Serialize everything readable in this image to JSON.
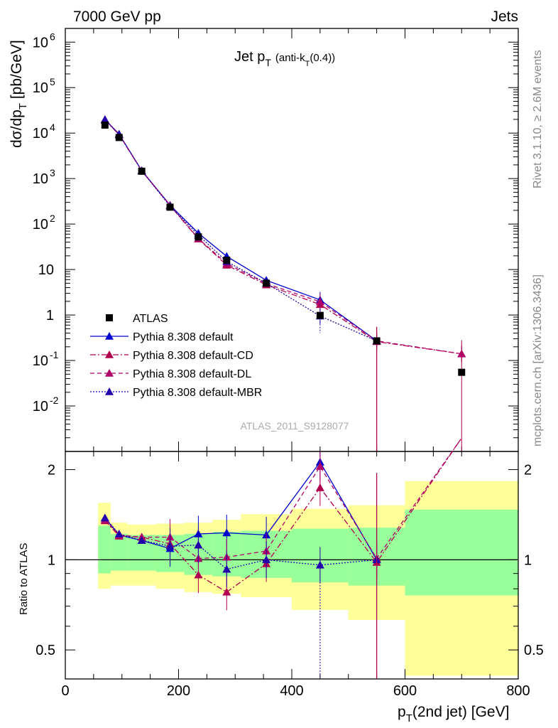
{
  "header": {
    "energy": "7000 GeV pp",
    "category": "Jets"
  },
  "plot_title": {
    "main": "Jet p",
    "main_sub": "T",
    "paren": "(anti-k",
    "paren_sub": "T",
    "paren_end": "(0.4))"
  },
  "side": {
    "rivet": "Rivet 3.1.10, ≥ 2.6M events",
    "mcplots": "mcplots.cern.ch [arXiv:1306.3436]"
  },
  "analysis_id": "ATLAS_2011_S9128077",
  "colors": {
    "atlas": "#000000",
    "default": "#0000cc",
    "cd": "#b0004f",
    "dl": "#b0006a",
    "mbr": "#2200aa",
    "band_yellow": "#ffff99",
    "band_green": "#99ff99"
  },
  "chart_data": [
    {
      "type": "scatter",
      "title": "Jet pT (anti-kT(0.4))",
      "xlabel": "pT(2nd jet) [GeV]",
      "ylabel": "dσ/dpT [pb/GeV]",
      "xlim": [
        0,
        800
      ],
      "ylim": [
        0.001,
        2000000
      ],
      "yscale": "log",
      "y_tick_labels": [
        "10^-2",
        "10^-1",
        "1",
        "10",
        "10^2",
        "10^3",
        "10^4",
        "10^5",
        "10^6"
      ],
      "legend": {
        "position": "lower-left",
        "entries": [
          "ATLAS",
          "Pythia 8.308 default",
          "Pythia 8.308 default-CD",
          "Pythia 8.308 default-DL",
          "Pythia 8.308 default-MBR"
        ]
      },
      "series": [
        {
          "name": "ATLAS",
          "style": "marker-square",
          "points": [
            [
              70,
              15000
            ],
            [
              95,
              8000
            ],
            [
              135,
              1450
            ],
            [
              185,
              235
            ],
            [
              235,
              52
            ],
            [
              285,
              16
            ],
            [
              355,
              5.0
            ],
            [
              450,
              0.98
            ],
            [
              550,
              0.27
            ],
            [
              700,
              0.055
            ]
          ]
        },
        {
          "name": "Pythia 8.308 default",
          "style": "solid-line-triangle",
          "points": [
            [
              70,
              20000
            ],
            [
              95,
              9500
            ],
            [
              135,
              1500
            ],
            [
              185,
              260
            ],
            [
              235,
              63
            ],
            [
              285,
              19.5
            ],
            [
              355,
              5.8
            ],
            [
              450,
              2.15
            ],
            [
              550,
              0.27
            ]
          ]
        },
        {
          "name": "Pythia 8.308 default-CD",
          "style": "dashdot-line-triangle",
          "points": [
            [
              70,
              19500
            ],
            [
              95,
              9200
            ],
            [
              135,
              1480
            ],
            [
              185,
              255
            ],
            [
              235,
              47
            ],
            [
              285,
              12.5
            ],
            [
              355,
              4.6
            ],
            [
              450,
              1.7
            ],
            [
              550,
              0.26
            ],
            [
              700,
              0.14
            ]
          ]
        },
        {
          "name": "Pythia 8.308 default-DL",
          "style": "dashed-line-triangle",
          "points": [
            [
              70,
              19800
            ],
            [
              95,
              9300
            ],
            [
              135,
              1490
            ],
            [
              185,
              258
            ],
            [
              235,
              48
            ],
            [
              285,
              13.5
            ],
            [
              355,
              4.9
            ],
            [
              450,
              1.95
            ],
            [
              550,
              0.27
            ],
            [
              700,
              0.14
            ]
          ]
        },
        {
          "name": "Pythia 8.308 default-MBR",
          "style": "dotted-line-triangle",
          "points": [
            [
              70,
              19700
            ],
            [
              95,
              9400
            ],
            [
              135,
              1480
            ],
            [
              185,
              248
            ],
            [
              235,
              57
            ],
            [
              285,
              15
            ],
            [
              355,
              5.0
            ],
            [
              450,
              0.95
            ],
            [
              550,
              0.27
            ]
          ]
        }
      ]
    },
    {
      "type": "line",
      "ylabel": "Ratio to ATLAS",
      "xlabel": "pT(2nd jet) [GeV]",
      "xlim": [
        0,
        800
      ],
      "ylim": [
        0.4,
        2.3
      ],
      "yscale": "log",
      "x_tick_labels": [
        "0",
        "200",
        "400",
        "600",
        "800"
      ],
      "y_tick_labels": [
        "0.5",
        "1",
        "2"
      ],
      "bands": {
        "edges": [
          58,
          80,
          110,
          160,
          210,
          260,
          310,
          400,
          500,
          600,
          800
        ],
        "yellow": [
          [
            0.8,
            1.55
          ],
          [
            0.82,
            1.33
          ],
          [
            0.82,
            1.31
          ],
          [
            0.8,
            1.32
          ],
          [
            0.78,
            1.33
          ],
          [
            0.77,
            1.36
          ],
          [
            0.75,
            1.42
          ],
          [
            0.68,
            1.48
          ],
          [
            0.63,
            1.52
          ],
          [
            0.41,
            1.83
          ]
        ],
        "green": [
          [
            0.9,
            1.3
          ],
          [
            0.92,
            1.22
          ],
          [
            0.92,
            1.21
          ],
          [
            0.91,
            1.21
          ],
          [
            0.89,
            1.22
          ],
          [
            0.88,
            1.24
          ],
          [
            0.87,
            1.25
          ],
          [
            0.84,
            1.27
          ],
          [
            0.82,
            1.28
          ],
          [
            0.76,
            1.47
          ]
        ]
      },
      "series": [
        {
          "name": "Pythia 8.308 default",
          "points": [
            [
              70,
              1.38
            ],
            [
              95,
              1.21
            ],
            [
              135,
              1.16
            ],
            [
              185,
              1.09
            ],
            [
              235,
              1.22
            ],
            [
              285,
              1.23
            ],
            [
              355,
              1.21
            ],
            [
              450,
              2.12
            ],
            [
              550,
              1.0
            ]
          ]
        },
        {
          "name": "Pythia 8.308 default-CD",
          "points": [
            [
              70,
              1.35
            ],
            [
              95,
              1.2
            ],
            [
              135,
              1.19
            ],
            [
              185,
              1.13
            ],
            [
              235,
              0.89
            ],
            [
              285,
              0.78
            ],
            [
              355,
              0.97
            ],
            [
              450,
              1.74
            ],
            [
              550,
              0.98
            ],
            [
              700,
              2.55
            ]
          ]
        },
        {
          "name": "Pythia 8.308 default-DL",
          "points": [
            [
              70,
              1.36
            ],
            [
              95,
              1.21
            ],
            [
              135,
              1.19
            ],
            [
              185,
              1.19
            ],
            [
              235,
              1.01
            ],
            [
              285,
              1.02
            ],
            [
              355,
              1.07
            ],
            [
              450,
              2.05
            ],
            [
              550,
              1.01
            ],
            [
              700,
              2.55
            ]
          ]
        },
        {
          "name": "Pythia 8.308 default-MBR",
          "points": [
            [
              70,
              1.38
            ],
            [
              95,
              1.22
            ],
            [
              135,
              1.16
            ],
            [
              185,
              1.11
            ],
            [
              235,
              1.12
            ],
            [
              285,
              0.93
            ],
            [
              355,
              1.0
            ],
            [
              450,
              0.96
            ],
            [
              550,
              1.0
            ]
          ]
        }
      ]
    }
  ]
}
